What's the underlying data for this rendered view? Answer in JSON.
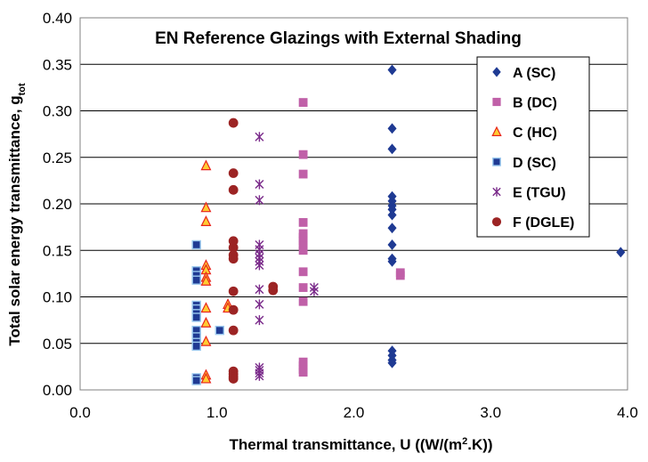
{
  "chart_data": {
    "type": "scatter",
    "title": "EN Reference Glazings with External Shading",
    "xlabel_main": "Thermal transmittance, U ((W/(m",
    "xlabel_sup": "2",
    "xlabel_tail": ".K))",
    "ylabel_main": "Total solar energy transmittance, g",
    "ylabel_sub": "tot",
    "xlim": [
      0,
      4
    ],
    "ylim": [
      0,
      0.4
    ],
    "x_ticks": [
      "0.0",
      "1.0",
      "2.0",
      "3.0",
      "4.0"
    ],
    "y_ticks": [
      "0.00",
      "0.05",
      "0.10",
      "0.15",
      "0.20",
      "0.25",
      "0.30",
      "0.35",
      "0.40"
    ],
    "grid": "horizontal",
    "legend_position": "top-right",
    "series": [
      {
        "name": "A (SC)",
        "marker": "diamond",
        "color": "#1f3a93",
        "points": [
          [
            2.28,
            0.344
          ],
          [
            2.28,
            0.281
          ],
          [
            2.28,
            0.259
          ],
          [
            2.28,
            0.208
          ],
          [
            2.28,
            0.203
          ],
          [
            2.28,
            0.198
          ],
          [
            2.28,
            0.194
          ],
          [
            2.28,
            0.188
          ],
          [
            2.28,
            0.174
          ],
          [
            2.28,
            0.156
          ],
          [
            2.28,
            0.141
          ],
          [
            2.28,
            0.138
          ],
          [
            2.28,
            0.042
          ],
          [
            2.28,
            0.037
          ],
          [
            2.28,
            0.032
          ],
          [
            2.28,
            0.029
          ],
          [
            3.95,
            0.148
          ]
        ]
      },
      {
        "name": "B (DC)",
        "marker": "square",
        "color": "#c060a8",
        "points": [
          [
            1.63,
            0.309
          ],
          [
            1.63,
            0.253
          ],
          [
            1.63,
            0.232
          ],
          [
            1.63,
            0.18
          ],
          [
            1.63,
            0.168
          ],
          [
            1.63,
            0.164
          ],
          [
            1.63,
            0.16
          ],
          [
            1.63,
            0.155
          ],
          [
            1.63,
            0.15
          ],
          [
            1.63,
            0.127
          ],
          [
            1.63,
            0.11
          ],
          [
            1.63,
            0.095
          ],
          [
            1.63,
            0.03
          ],
          [
            1.63,
            0.026
          ],
          [
            1.63,
            0.022
          ],
          [
            1.63,
            0.019
          ],
          [
            2.34,
            0.126
          ],
          [
            2.34,
            0.123
          ]
        ]
      },
      {
        "name": "C (HC)",
        "marker": "triangle",
        "color": "#ffcc33",
        "stroke": "#e8231c",
        "points": [
          [
            0.92,
            0.241
          ],
          [
            0.92,
            0.196
          ],
          [
            0.92,
            0.181
          ],
          [
            0.92,
            0.134
          ],
          [
            0.92,
            0.129
          ],
          [
            0.92,
            0.121
          ],
          [
            0.92,
            0.117
          ],
          [
            0.92,
            0.088
          ],
          [
            0.92,
            0.072
          ],
          [
            0.92,
            0.052
          ],
          [
            0.92,
            0.016
          ],
          [
            0.92,
            0.012
          ],
          [
            1.08,
            0.092
          ],
          [
            1.08,
            0.088
          ]
        ]
      },
      {
        "name": "D (SC)",
        "marker": "square",
        "color": "#1f3a93",
        "stroke": "#9ac8ee",
        "points": [
          [
            0.85,
            0.156
          ],
          [
            0.85,
            0.128
          ],
          [
            0.85,
            0.123
          ],
          [
            0.85,
            0.118
          ],
          [
            0.85,
            0.091
          ],
          [
            0.85,
            0.087
          ],
          [
            0.85,
            0.082
          ],
          [
            0.85,
            0.078
          ],
          [
            0.85,
            0.064
          ],
          [
            0.85,
            0.057
          ],
          [
            0.85,
            0.051
          ],
          [
            0.85,
            0.047
          ],
          [
            0.85,
            0.013
          ],
          [
            0.85,
            0.01
          ],
          [
            1.02,
            0.064
          ]
        ]
      },
      {
        "name": "E (TGU)",
        "marker": "star",
        "color": "#7a2a8a",
        "points": [
          [
            1.31,
            0.272
          ],
          [
            1.31,
            0.221
          ],
          [
            1.31,
            0.204
          ],
          [
            1.31,
            0.156
          ],
          [
            1.31,
            0.151
          ],
          [
            1.31,
            0.146
          ],
          [
            1.31,
            0.142
          ],
          [
            1.31,
            0.138
          ],
          [
            1.31,
            0.134
          ],
          [
            1.31,
            0.108
          ],
          [
            1.31,
            0.092
          ],
          [
            1.31,
            0.075
          ],
          [
            1.31,
            0.024
          ],
          [
            1.31,
            0.021
          ],
          [
            1.31,
            0.018
          ],
          [
            1.31,
            0.015
          ],
          [
            1.71,
            0.11
          ],
          [
            1.71,
            0.106
          ]
        ]
      },
      {
        "name": "F (DGLE)",
        "marker": "circle",
        "color": "#9c2424",
        "points": [
          [
            1.12,
            0.287
          ],
          [
            1.12,
            0.233
          ],
          [
            1.12,
            0.215
          ],
          [
            1.12,
            0.16
          ],
          [
            1.12,
            0.153
          ],
          [
            1.12,
            0.145
          ],
          [
            1.12,
            0.141
          ],
          [
            1.12,
            0.106
          ],
          [
            1.12,
            0.086
          ],
          [
            1.12,
            0.064
          ],
          [
            1.12,
            0.02
          ],
          [
            1.12,
            0.017
          ],
          [
            1.12,
            0.014
          ],
          [
            1.12,
            0.012
          ],
          [
            1.41,
            0.111
          ],
          [
            1.41,
            0.107
          ]
        ]
      }
    ]
  }
}
